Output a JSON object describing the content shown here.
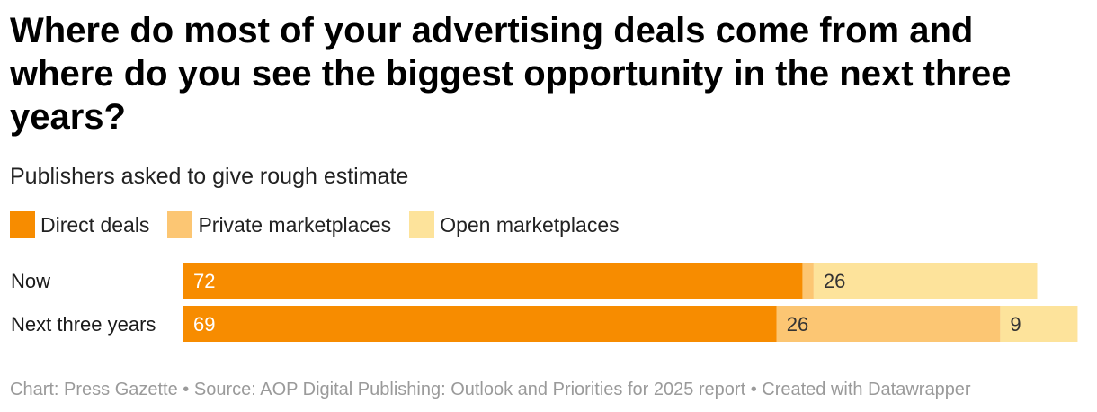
{
  "title": "Where do most of your advertising deals come from and where do you see the biggest opportunity in the next three years?",
  "subtitle": "Publishers asked to give rough estimate",
  "footer": "Chart: Press Gazette • Source: AOP Digital Publishing: Outlook and Priorities for 2025 report • Created with Datawrapper",
  "colors": {
    "direct": "#f78c00",
    "private": "#fcc673",
    "open": "#fde39b",
    "label_dark": "#333333",
    "label_light": "#ffffff"
  },
  "chart_data": {
    "type": "bar",
    "orientation": "horizontal",
    "stacked": true,
    "title": "Where do most of your advertising deals come from and where do you see the biggest opportunity in the next three years?",
    "subtitle": "Publishers asked to give rough estimate",
    "legend_placement": "top-left",
    "grid": false,
    "xlim": [
      0,
      105
    ],
    "categories": [
      "Now",
      "Next three years"
    ],
    "series": [
      {
        "name": "Direct deals",
        "values": [
          72,
          69
        ],
        "labels": [
          "72",
          "69"
        ],
        "color": "#f78c00"
      },
      {
        "name": "Private marketplaces",
        "values": [
          1.3,
          26
        ],
        "labels": [
          "",
          "26"
        ],
        "color": "#fcc673"
      },
      {
        "name": "Open marketplaces",
        "values": [
          26,
          9
        ],
        "labels": [
          "26",
          "9"
        ],
        "color": "#fde39b"
      }
    ]
  }
}
